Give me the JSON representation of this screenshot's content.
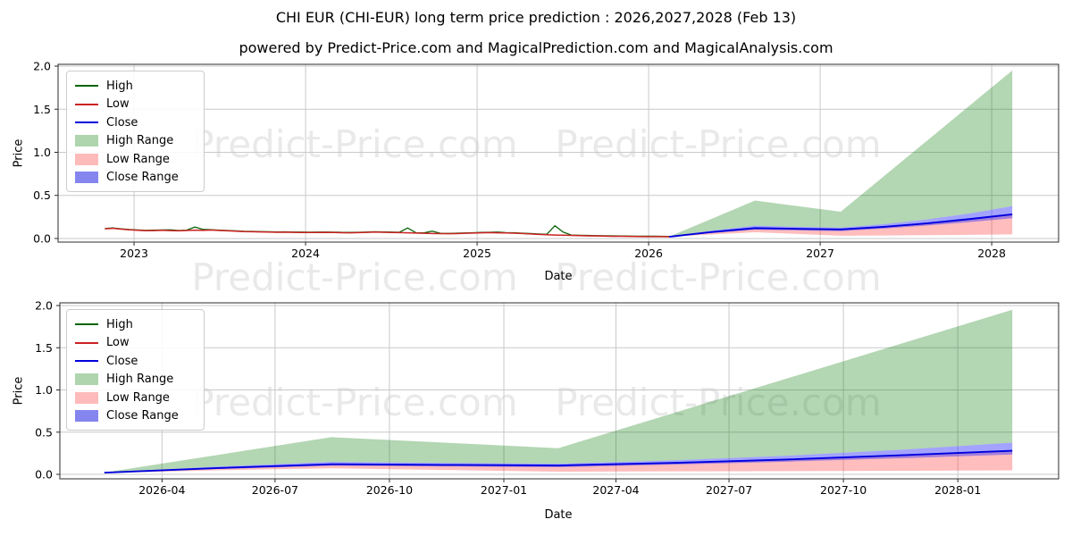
{
  "page": {
    "title": "CHI EUR (CHI-EUR) long term price prediction : 2026,2027,2028 (Feb 13)",
    "subtitle": "powered by Predict-Price.com and MagicalPrediction.com and MagicalAnalysis.com"
  },
  "watermark": {
    "text": "Predict-Price.com"
  },
  "legend": {
    "items": [
      {
        "label": "High",
        "swatch": "line",
        "color": "#066406"
      },
      {
        "label": "Low",
        "swatch": "line",
        "color": "#cc2222"
      },
      {
        "label": "Close",
        "swatch": "line",
        "color": "#0000dd"
      },
      {
        "label": "High Range",
        "swatch": "patch",
        "color": "#afd5af"
      },
      {
        "label": "Low Range",
        "swatch": "patch",
        "color": "#ffbaba"
      },
      {
        "label": "Close Range",
        "swatch": "patch",
        "color": "#8585ef"
      }
    ]
  },
  "colors": {
    "high_line": "#066406",
    "low_line": "#cc2222",
    "close_line": "#0000dd",
    "high_fill": "rgba(20,128,20,0.32)",
    "low_fill": "rgba(255,50,50,0.32)",
    "close_fill": "rgba(50,50,255,0.45)",
    "grid": "#c9c9c9",
    "spine": "#2b2b2b",
    "tick_text": "#000000"
  },
  "chart_data": {
    "type": "line",
    "title": "CHI EUR (CHI-EUR) long term price prediction : 2026,2027,2028 (Feb 13)",
    "historical": {
      "t_start": 2022.83,
      "t_step": 0.0477,
      "low": [
        0.112,
        0.118,
        0.108,
        0.1,
        0.095,
        0.09,
        0.092,
        0.095,
        0.091,
        0.089,
        0.093,
        0.097,
        0.094,
        0.098,
        0.093,
        0.089,
        0.085,
        0.08,
        0.078,
        0.076,
        0.074,
        0.072,
        0.073,
        0.071,
        0.07,
        0.069,
        0.07,
        0.071,
        0.069,
        0.067,
        0.066,
        0.068,
        0.071,
        0.074,
        0.072,
        0.07,
        0.068,
        0.066,
        0.063,
        0.061,
        0.058,
        0.056,
        0.055,
        0.057,
        0.06,
        0.063,
        0.066,
        0.068,
        0.066,
        0.064,
        0.062,
        0.058,
        0.053,
        0.048,
        0.044,
        0.04,
        0.038,
        0.036,
        0.033,
        0.031,
        0.029,
        0.028,
        0.026,
        0.025,
        0.024,
        0.023,
        0.022,
        0.022,
        0.021,
        0.02
      ],
      "high": [
        0.116,
        0.122,
        0.112,
        0.104,
        0.099,
        0.094,
        0.096,
        0.099,
        0.1,
        0.093,
        0.097,
        0.133,
        0.105,
        0.102,
        0.097,
        0.093,
        0.089,
        0.084,
        0.082,
        0.08,
        0.078,
        0.076,
        0.077,
        0.075,
        0.074,
        0.073,
        0.074,
        0.075,
        0.073,
        0.071,
        0.07,
        0.072,
        0.075,
        0.078,
        0.076,
        0.074,
        0.072,
        0.122,
        0.067,
        0.065,
        0.085,
        0.06,
        0.059,
        0.061,
        0.064,
        0.067,
        0.07,
        0.072,
        0.075,
        0.068,
        0.066,
        0.062,
        0.057,
        0.052,
        0.048,
        0.148,
        0.075,
        0.04,
        0.037,
        0.035,
        0.033,
        0.032,
        0.03,
        0.029,
        0.028,
        0.027,
        0.026,
        0.026,
        0.025,
        0.024
      ]
    },
    "prediction": {
      "t": [
        2026.12,
        2026.37,
        2026.62,
        2026.87,
        2027.12,
        2027.37,
        2027.62,
        2027.87,
        2028.12
      ],
      "close": [
        0.02,
        0.075,
        0.12,
        0.112,
        0.105,
        0.135,
        0.175,
        0.225,
        0.28
      ],
      "close_top": [
        0.022,
        0.092,
        0.148,
        0.135,
        0.125,
        0.165,
        0.22,
        0.29,
        0.375
      ],
      "close_bot": [
        0.018,
        0.063,
        0.102,
        0.094,
        0.085,
        0.115,
        0.15,
        0.19,
        0.235
      ],
      "high_top": [
        0.022,
        0.23,
        0.44,
        0.375,
        0.31,
        0.72,
        1.13,
        1.54,
        1.95
      ],
      "low_bot": [
        0.018,
        0.048,
        0.072,
        0.052,
        0.032,
        0.035,
        0.038,
        0.042,
        0.048
      ]
    },
    "charts": [
      {
        "name": "full-history-chart",
        "xlabel": "Date",
        "ylabel": "Price",
        "x_range": [
          2022.557,
          2028.39
        ],
        "y_range": [
          -0.042,
          2.021
        ],
        "show_historical": true,
        "x_ticks": [
          {
            "v": 2023,
            "label": "2023"
          },
          {
            "v": 2024,
            "label": "2024"
          },
          {
            "v": 2025,
            "label": "2025"
          },
          {
            "v": 2026,
            "label": "2026"
          },
          {
            "v": 2027,
            "label": "2027"
          },
          {
            "v": 2028,
            "label": "2028"
          }
        ],
        "y_ticks": [
          {
            "v": 0.0,
            "label": "0.0"
          },
          {
            "v": 0.5,
            "label": "0.5"
          },
          {
            "v": 1.0,
            "label": "1.0"
          },
          {
            "v": 1.5,
            "label": "1.5"
          },
          {
            "v": 2.0,
            "label": "2.0"
          }
        ]
      },
      {
        "name": "prediction-zoom-chart",
        "xlabel": "Date",
        "ylabel": "Price",
        "x_range": [
          2026.022,
          2028.222
        ],
        "y_range": [
          -0.053,
          2.032
        ],
        "show_historical": false,
        "x_ticks": [
          {
            "v": 2026.247,
            "label": "2026-04"
          },
          {
            "v": 2026.496,
            "label": "2026-07"
          },
          {
            "v": 2026.748,
            "label": "2026-10"
          },
          {
            "v": 2027.0,
            "label": "2027-01"
          },
          {
            "v": 2027.247,
            "label": "2027-04"
          },
          {
            "v": 2027.496,
            "label": "2027-07"
          },
          {
            "v": 2027.748,
            "label": "2027-10"
          },
          {
            "v": 2028.0,
            "label": "2028-01"
          }
        ],
        "y_ticks": [
          {
            "v": 0.0,
            "label": "0.0"
          },
          {
            "v": 0.5,
            "label": "0.5"
          },
          {
            "v": 1.0,
            "label": "1.0"
          },
          {
            "v": 1.5,
            "label": "1.5"
          },
          {
            "v": 2.0,
            "label": "2.0"
          }
        ]
      }
    ]
  }
}
